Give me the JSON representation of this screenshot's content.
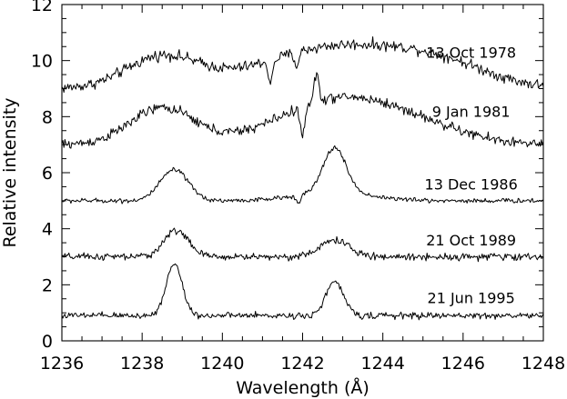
{
  "chart_data": {
    "type": "line",
    "xlabel": "Wavelength (Å)",
    "ylabel": "Relative intensity",
    "xlim": [
      1236,
      1248
    ],
    "ylim": [
      0,
      12
    ],
    "xticks": [
      1236,
      1238,
      1240,
      1242,
      1244,
      1246,
      1248
    ],
    "yticks": [
      0,
      2,
      4,
      6,
      8,
      10,
      12
    ],
    "grid": false,
    "series": [
      {
        "name": "13 Oct 1978",
        "label_position": [
          1246.2,
          10.1
        ],
        "baseline": 9.0,
        "features": [
          {
            "type": "gaussian",
            "center": 1238.5,
            "width": 0.9,
            "amp": 1.1
          },
          {
            "type": "gaussian",
            "center": 1242.9,
            "width": 1.9,
            "amp": 1.5
          },
          {
            "type": "gaussian",
            "center": 1245.5,
            "width": 1.2,
            "amp": 0.6
          },
          {
            "type": "gaussian",
            "center": 1241.2,
            "width": 0.05,
            "amp": -0.9
          },
          {
            "type": "gaussian",
            "center": 1241.85,
            "width": 0.05,
            "amp": -0.5
          }
        ],
        "noise": 0.14
      },
      {
        "name": "9 Jan 1981",
        "label_position": [
          1246.2,
          8.0
        ],
        "baseline": 7.0,
        "features": [
          {
            "type": "gaussian",
            "center": 1238.5,
            "width": 0.8,
            "amp": 1.3
          },
          {
            "type": "gaussian",
            "center": 1242.9,
            "width": 1.5,
            "amp": 1.6
          },
          {
            "type": "gaussian",
            "center": 1242.35,
            "width": 0.06,
            "amp": 1.0
          },
          {
            "type": "gaussian",
            "center": 1242.0,
            "width": 0.06,
            "amp": -1.0
          },
          {
            "type": "gaussian",
            "center": 1245.0,
            "width": 1.2,
            "amp": 0.4
          }
        ],
        "noise": 0.13
      },
      {
        "name": "13 Dec 1986",
        "label_position": [
          1246.2,
          5.4
        ],
        "baseline": 5.0,
        "features": [
          {
            "type": "gaussian",
            "center": 1238.8,
            "width": 0.35,
            "amp": 1.1
          },
          {
            "type": "gaussian",
            "center": 1242.8,
            "width": 0.28,
            "amp": 1.6
          },
          {
            "type": "gaussian",
            "center": 1242.8,
            "width": 0.9,
            "amp": 0.3
          },
          {
            "type": "gaussian",
            "center": 1241.9,
            "width": 0.06,
            "amp": -0.2
          }
        ],
        "noise": 0.06
      },
      {
        "name": "21 Oct 1989",
        "label_position": [
          1246.2,
          3.4
        ],
        "baseline": 3.0,
        "features": [
          {
            "type": "gaussian",
            "center": 1238.85,
            "width": 0.3,
            "amp": 0.95
          },
          {
            "type": "gaussian",
            "center": 1242.8,
            "width": 0.35,
            "amp": 0.6
          }
        ],
        "noise": 0.09
      },
      {
        "name": "21 Jun 1995",
        "label_position": [
          1246.2,
          1.35
        ],
        "baseline": 0.9,
        "features": [
          {
            "type": "gaussian",
            "center": 1238.8,
            "width": 0.2,
            "amp": 1.85
          },
          {
            "type": "gaussian",
            "center": 1242.8,
            "width": 0.22,
            "amp": 1.2
          }
        ],
        "noise": 0.08
      }
    ]
  }
}
